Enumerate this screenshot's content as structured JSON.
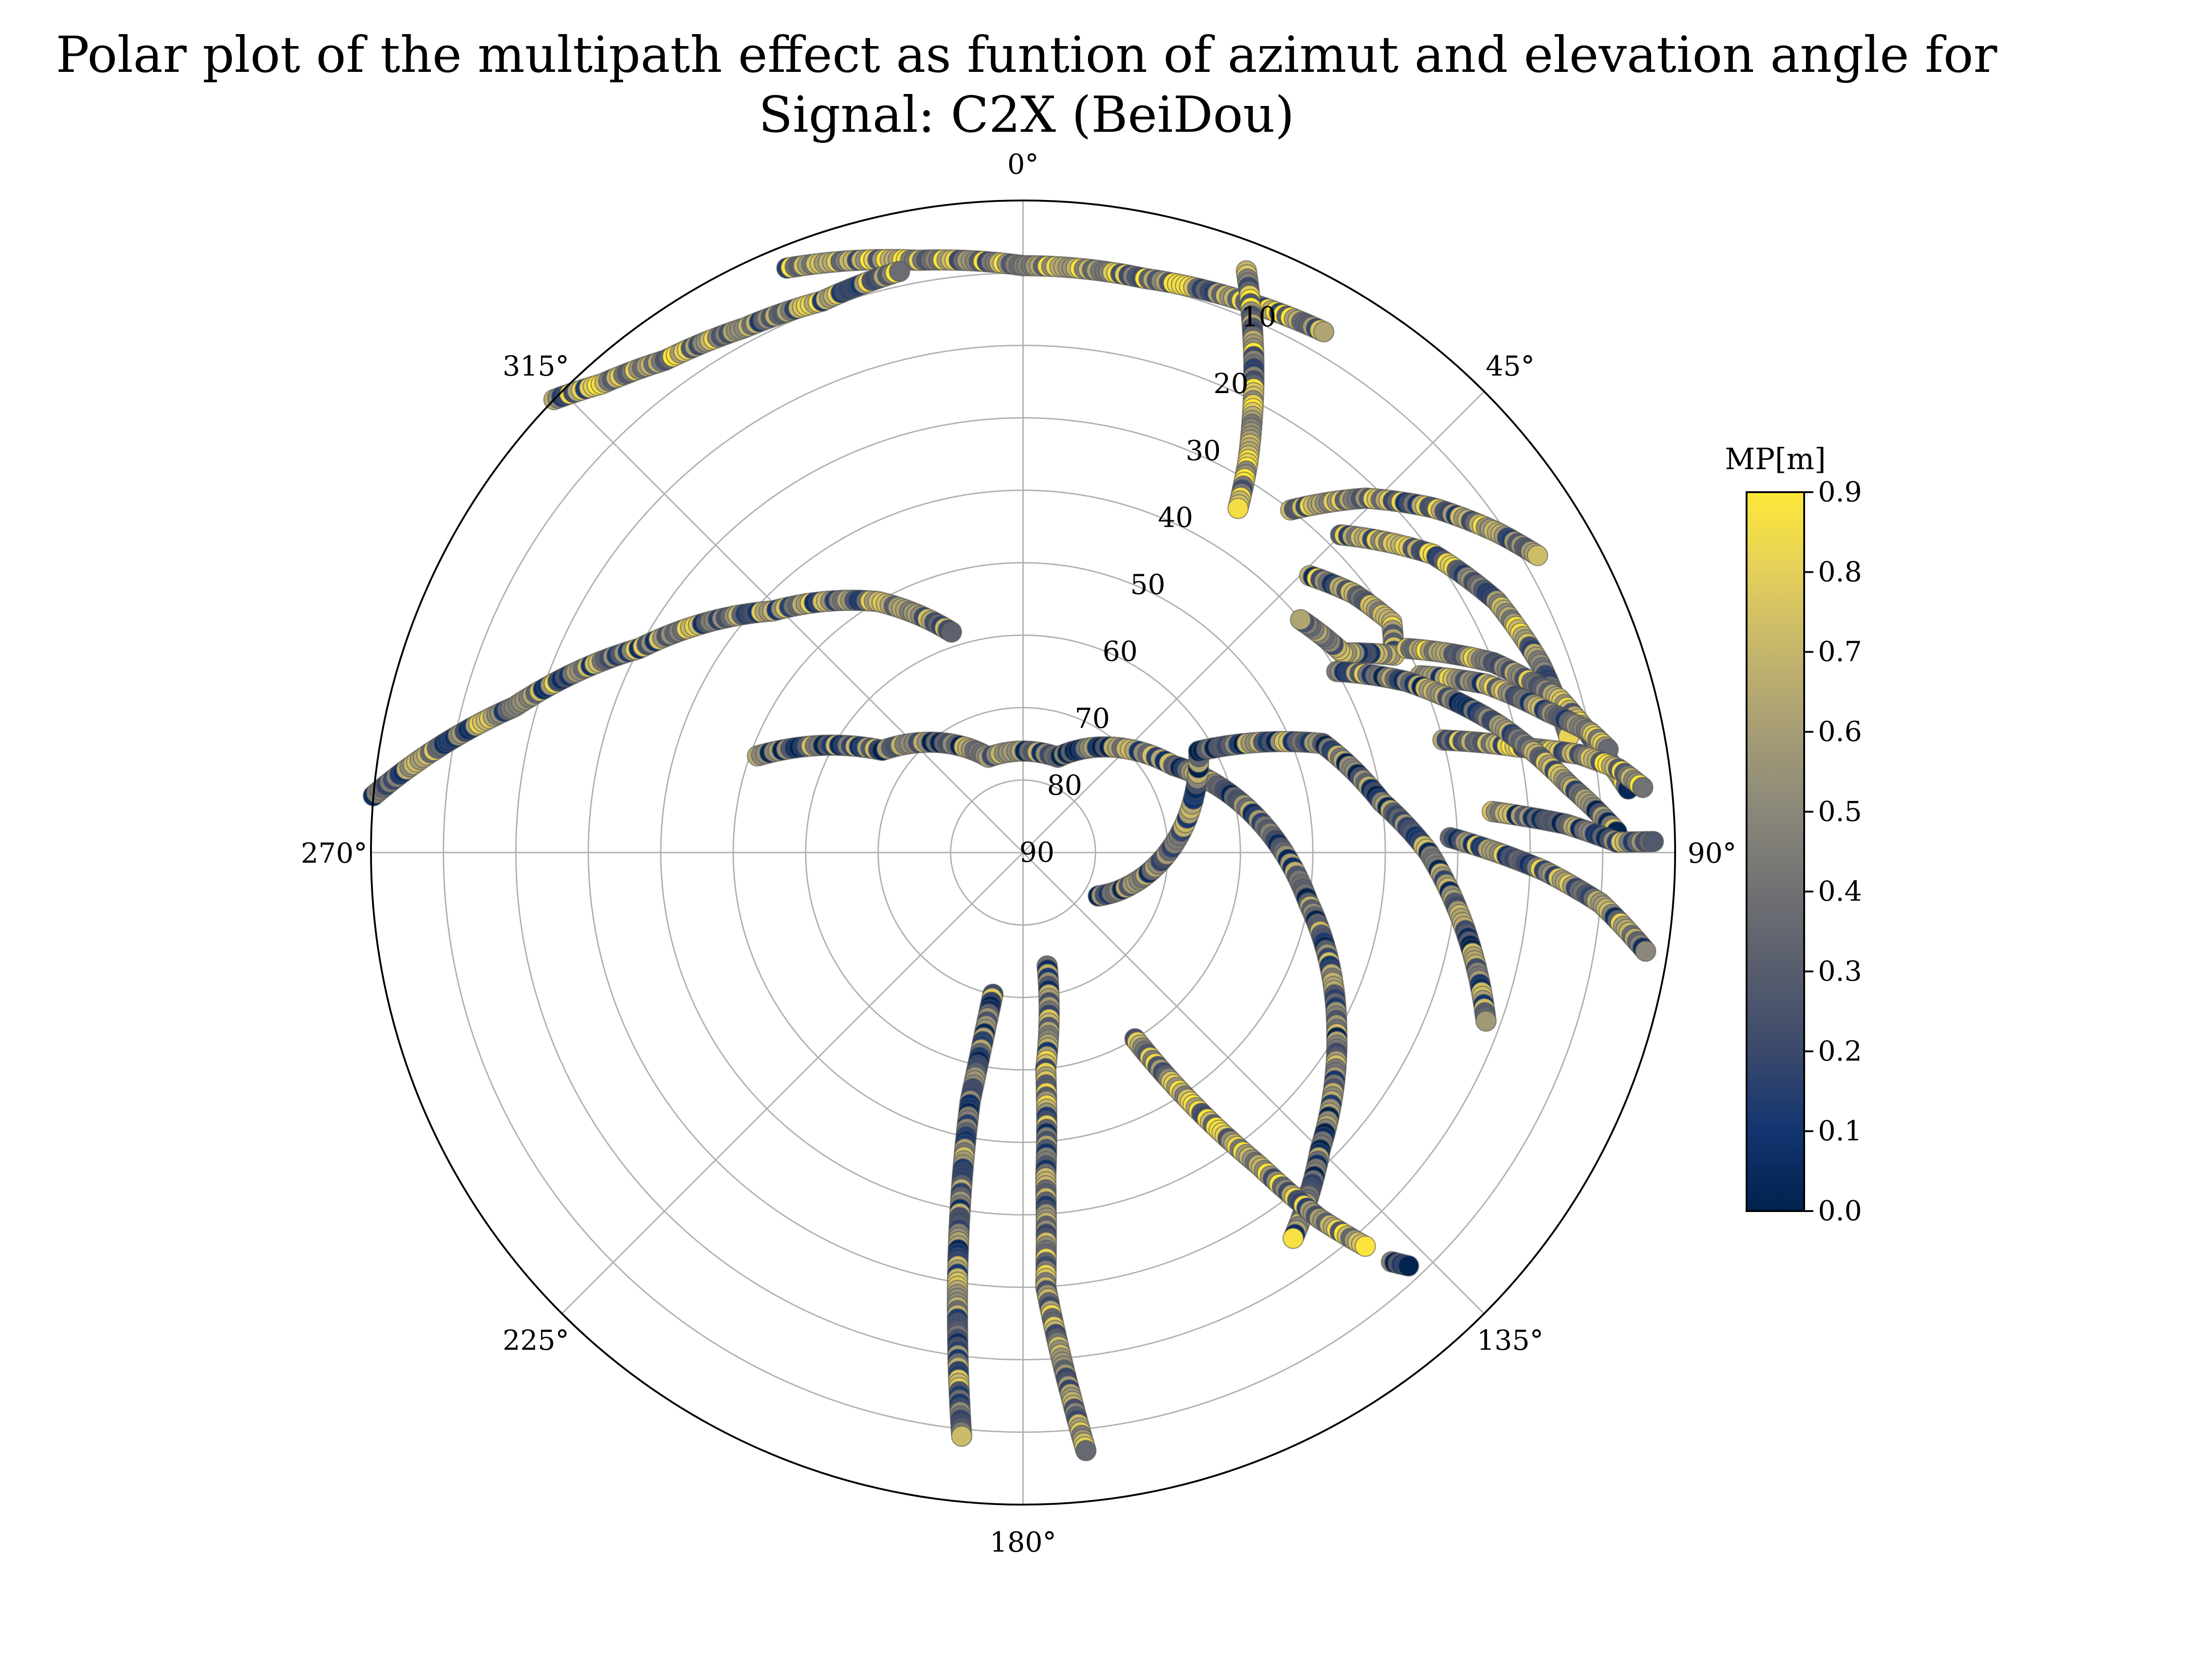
{
  "chart_data": {
    "type": "scatter",
    "projection": "polar",
    "title_lines": [
      "Polar plot of the multipath effect as funtion of azimut and elevation angle for",
      "Signal: C2X (BeiDou)"
    ],
    "theta_zero_location": "N",
    "theta_direction": "clockwise",
    "theta_ticks": [
      "0°",
      "45°",
      "90°",
      "135°",
      "180°",
      "225°",
      "270°",
      "315°"
    ],
    "radial_axis": "elevation",
    "rlim": [
      90,
      0
    ],
    "r_ticks": [
      "10",
      "20",
      "30",
      "40",
      "50",
      "60",
      "70",
      "80",
      "90"
    ],
    "grid": true,
    "colorbar": {
      "label": "MP[m]",
      "colormap": "cividis",
      "range": [
        0.0,
        0.9
      ],
      "ticks": [
        "0.0",
        "0.1",
        "0.2",
        "0.3",
        "0.4",
        "0.5",
        "0.6",
        "0.7",
        "0.8",
        "0.9"
      ],
      "colors": [
        "#00224e",
        "#123570",
        "#3b496c",
        "#575d6d",
        "#707173",
        "#8a8779",
        "#a69d75",
        "#c4b56c",
        "#e4cf5b",
        "#fee838"
      ]
    },
    "tracks": [
      {
        "points": [
          [
            338,
            3
          ],
          [
            350,
            7
          ],
          [
            0,
            9
          ],
          [
            12,
            9
          ],
          [
            22,
            8
          ],
          [
            30,
            7
          ]
        ],
        "mp_mean": 0.55
      },
      {
        "points": [
          [
            314,
            0
          ],
          [
            318,
            3
          ],
          [
            324,
            6
          ],
          [
            332,
            8
          ],
          [
            340,
            9
          ],
          [
            348,
            8
          ]
        ],
        "mp_mean": 0.5
      },
      {
        "points": [
          [
            21,
            4
          ],
          [
            24,
            12
          ],
          [
            27,
            20
          ],
          [
            30,
            28
          ],
          [
            32,
            34
          ]
        ],
        "mp_mean": 0.55
      },
      {
        "points": [
          [
            38,
            30
          ],
          [
            44,
            22
          ],
          [
            50,
            16
          ],
          [
            56,
            11
          ],
          [
            60,
            8
          ]
        ],
        "mp_mean": 0.5
      },
      {
        "points": [
          [
            45,
            28
          ],
          [
            54,
            20
          ],
          [
            62,
            16
          ],
          [
            70,
            14
          ],
          [
            78,
            13
          ]
        ],
        "mp_mean": 0.5
      },
      {
        "points": [
          [
            46,
            35
          ],
          [
            52,
            32
          ],
          [
            58,
            30
          ],
          [
            62,
            32
          ],
          [
            58,
            38
          ],
          [
            50,
            40
          ]
        ],
        "mp_mean": 0.45
      },
      {
        "points": [
          [
            62,
            30
          ],
          [
            68,
            20
          ],
          [
            74,
            13
          ],
          [
            80,
            9
          ],
          [
            84,
            6
          ]
        ],
        "mp_mean": 0.55
      },
      {
        "points": [
          [
            66,
            30
          ],
          [
            70,
            22
          ],
          [
            75,
            15
          ],
          [
            78,
            10
          ],
          [
            80,
            8
          ]
        ],
        "mp_mean": 0.45
      },
      {
        "points": [
          [
            75,
            30
          ],
          [
            78,
            20
          ],
          [
            80,
            12
          ],
          [
            82,
            7
          ],
          [
            84,
            4
          ]
        ],
        "mp_mean": 0.55
      },
      {
        "points": [
          [
            60,
            40
          ],
          [
            66,
            32
          ],
          [
            75,
            22
          ],
          [
            83,
            14
          ],
          [
            88,
            8
          ]
        ],
        "mp_mean": 0.4
      },
      {
        "points": [
          [
            85,
            25
          ],
          [
            87,
            15
          ],
          [
            89,
            8
          ],
          [
            89,
            3
          ]
        ],
        "mp_mean": 0.4
      },
      {
        "points": [
          [
            88,
            31
          ],
          [
            92,
            18
          ],
          [
            95,
            10
          ],
          [
            99,
            3
          ]
        ],
        "mp_mean": 0.45
      },
      {
        "points": [
          [
            275,
            0
          ],
          [
            286,
            17
          ],
          [
            298,
            30
          ],
          [
            314,
            42
          ],
          [
            330,
            50
          ],
          [
            342,
            58
          ]
        ],
        "mp_mean": 0.45
      },
      {
        "points": [
          [
            290,
            51
          ],
          [
            306,
            66
          ],
          [
            340,
            76
          ],
          [
            20,
            76
          ],
          [
            60,
            66
          ],
          [
            100,
            50
          ],
          [
            120,
            40
          ],
          [
            135,
            32
          ],
          [
            145,
            25
          ]
        ],
        "mp_mean": 0.35
      },
      {
        "points": [
          [
            120,
            78
          ],
          [
            60,
            62
          ],
          [
            70,
            46
          ],
          [
            82,
            40
          ],
          [
            90,
            34
          ],
          [
            100,
            28
          ],
          [
            110,
            22
          ]
        ],
        "mp_mean": 0.35
      },
      {
        "points": [
          [
            192,
            70
          ],
          [
            192,
            55
          ],
          [
            190,
            40
          ],
          [
            188,
            25
          ],
          [
            186,
            9
          ]
        ],
        "mp_mean": 0.4
      },
      {
        "points": [
          [
            168,
            74
          ],
          [
            174,
            60
          ],
          [
            176,
            45
          ],
          [
            177,
            30
          ],
          [
            175,
            15
          ],
          [
            174,
            7
          ]
        ],
        "mp_mean": 0.45
      },
      {
        "points": [
          [
            149,
            60
          ],
          [
            146,
            48
          ],
          [
            143,
            36
          ],
          [
            141,
            25
          ],
          [
            139,
            18
          ]
        ],
        "mp_mean": 0.55
      },
      {
        "points": [
          [
            138,
            14
          ],
          [
            137,
            12
          ]
        ],
        "mp_mean": 0.2
      }
    ]
  }
}
